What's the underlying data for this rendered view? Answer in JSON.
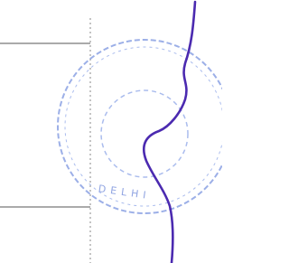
{
  "stamp": {
    "text": "DELHI"
  }
}
